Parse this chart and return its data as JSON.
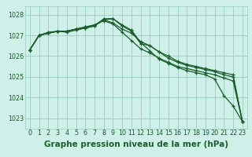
{
  "xlabel": "Graphe pression niveau de la mer (hPa)",
  "bg_color": "#cff0e8",
  "grid_color": "#99ccbb",
  "line_color": "#1a5c2a",
  "x": [
    0,
    1,
    2,
    3,
    4,
    5,
    6,
    7,
    8,
    9,
    10,
    11,
    12,
    13,
    14,
    15,
    16,
    17,
    18,
    19,
    20,
    21,
    22,
    23
  ],
  "series": [
    [
      1026.3,
      1027.0,
      1027.1,
      1027.2,
      1027.2,
      1027.3,
      1027.35,
      1027.45,
      1027.75,
      1027.8,
      1027.45,
      1027.2,
      1026.6,
      1026.5,
      1026.2,
      1025.9,
      1025.7,
      1025.55,
      1025.45,
      1025.35,
      1025.25,
      1025.1,
      1025.0,
      1022.85
    ],
    [
      1026.3,
      1027.0,
      1027.1,
      1027.2,
      1027.2,
      1027.3,
      1027.4,
      1027.5,
      1027.75,
      1027.6,
      1027.3,
      1027.1,
      1026.7,
      1026.5,
      1026.2,
      1026.0,
      1025.75,
      1025.6,
      1025.5,
      1025.4,
      1025.3,
      1025.2,
      1025.1,
      1022.85
    ],
    [
      1026.3,
      1027.0,
      1027.15,
      1027.2,
      1027.2,
      1027.3,
      1027.4,
      1027.5,
      1027.7,
      1027.55,
      1027.15,
      1026.75,
      1026.35,
      1026.15,
      1025.9,
      1025.7,
      1025.5,
      1025.4,
      1025.3,
      1025.2,
      1025.1,
      1024.95,
      1024.8,
      1022.85
    ],
    [
      1026.3,
      1027.0,
      1027.1,
      1027.2,
      1027.15,
      1027.25,
      1027.35,
      1027.45,
      1027.8,
      1027.8,
      1027.5,
      1027.25,
      1026.65,
      1026.25,
      1025.85,
      1025.65,
      1025.45,
      1025.3,
      1025.2,
      1025.1,
      1024.9,
      1024.1,
      1023.6,
      1022.85
    ]
  ],
  "ylim": [
    1022.5,
    1028.4
  ],
  "yticks": [
    1023,
    1024,
    1025,
    1026,
    1027,
    1028
  ],
  "xticks": [
    0,
    1,
    2,
    3,
    4,
    5,
    6,
    7,
    8,
    9,
    10,
    11,
    12,
    13,
    14,
    15,
    16,
    17,
    18,
    19,
    20,
    21,
    22,
    23
  ],
  "marker": "+",
  "marker_size": 3.5,
  "linewidth": 0.9,
  "xlabel_fontsize": 7.5,
  "tick_fontsize": 5.8,
  "xlabel_color": "#1a5c2a",
  "tick_color": "#1a5c2a"
}
